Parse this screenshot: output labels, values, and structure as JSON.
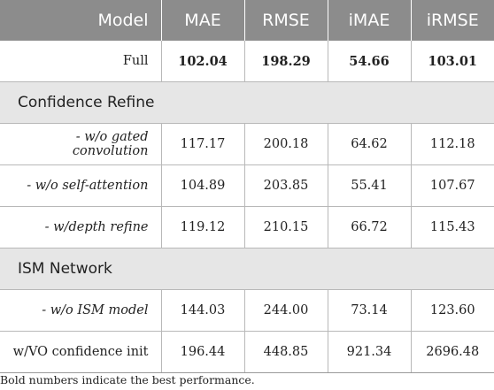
{
  "header": {
    "model": "Model",
    "mae": "MAE",
    "rmse": "RMSE",
    "imae": "iMAE",
    "irmse": "iRMSE"
  },
  "full": {
    "label": "Full",
    "mae": "102.04",
    "rmse": "198.29",
    "imae": "54.66",
    "irmse": "103.01"
  },
  "sections": [
    {
      "title": "Confidence Refine",
      "rows": [
        {
          "label": "- w/o gated convolution",
          "mae": "117.17",
          "rmse": "200.18",
          "imae": "64.62",
          "irmse": "112.18"
        },
        {
          "label": "- w/o self-attention",
          "mae": "104.89",
          "rmse": "203.85",
          "imae": "55.41",
          "irmse": "107.67"
        },
        {
          "label": "- w/depth refine",
          "mae": "119.12",
          "rmse": "210.15",
          "imae": "66.72",
          "irmse": "115.43"
        }
      ]
    },
    {
      "title": "ISM Network",
      "rows": [
        {
          "label": "- w/o ISM model",
          "mae": "144.03",
          "rmse": "244.00",
          "imae": "73.14",
          "irmse": "123.60"
        },
        {
          "label": "w/VO confidence init",
          "mae": "196.44",
          "rmse": "448.85",
          "imae": "921.34",
          "irmse": "2696.48"
        }
      ]
    }
  ],
  "footnote": "Bold numbers indicate the best performance."
}
